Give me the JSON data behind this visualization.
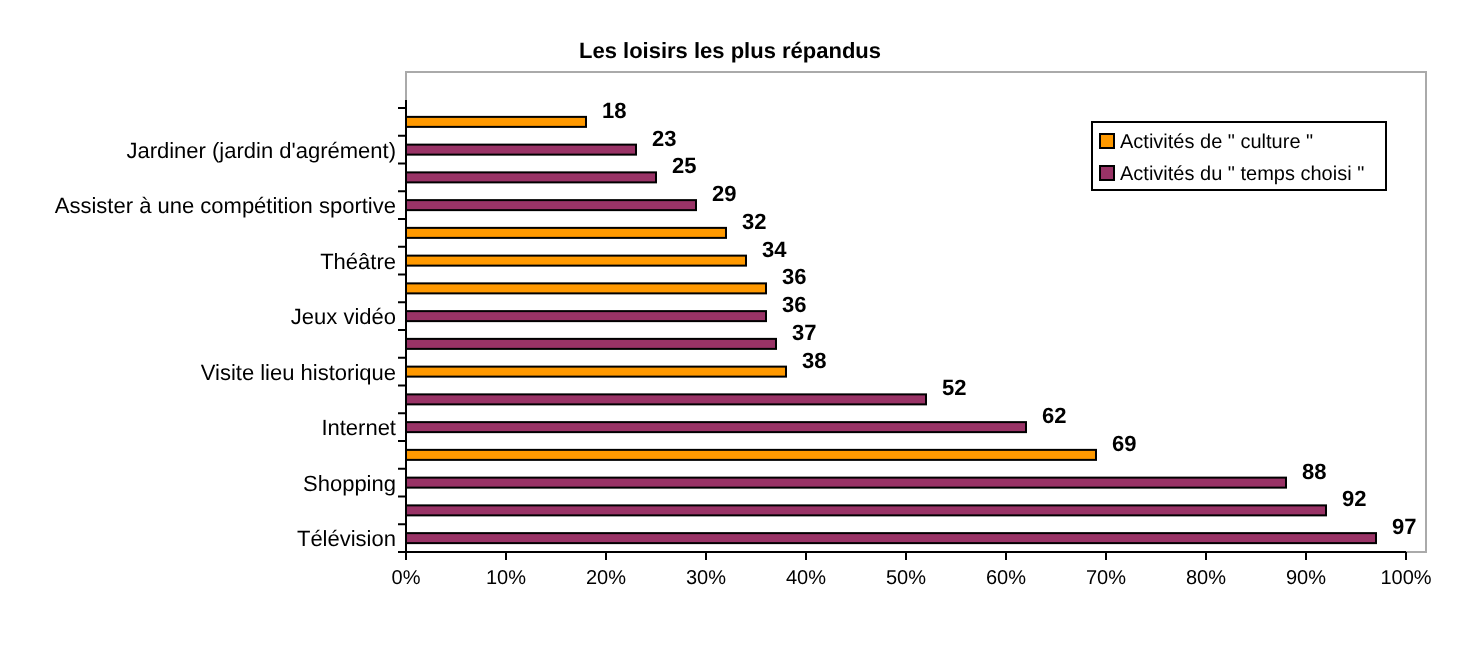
{
  "chart_data": {
    "type": "bar",
    "orientation": "horizontal",
    "title": "Les loisirs les plus répandus",
    "categories": [
      null,
      "Jardiner (jardin d'agrément)",
      null,
      "Assister à une compétition sportive",
      null,
      "Théâtre",
      null,
      "Jeux vidéo",
      null,
      "Visite lieu historique",
      null,
      "Internet",
      null,
      "Shopping",
      null,
      "Télévision"
    ],
    "series": [
      {
        "name": "Activités de \" culture \"",
        "color": "#ff9900",
        "values": [
          18,
          null,
          null,
          null,
          32,
          34,
          36,
          null,
          null,
          38,
          null,
          null,
          69,
          null,
          null,
          null
        ]
      },
      {
        "name": "Activités du \" temps choisi \"",
        "color": "#993366",
        "values": [
          null,
          23,
          25,
          29,
          null,
          null,
          null,
          36,
          37,
          null,
          52,
          62,
          null,
          88,
          92,
          97
        ]
      }
    ],
    "xlim": [
      0,
      100
    ],
    "xticks": [
      {
        "value": 0,
        "label": "0%"
      },
      {
        "value": 10,
        "label": "10%"
      },
      {
        "value": 20,
        "label": "20%"
      },
      {
        "value": 30,
        "label": "30%"
      },
      {
        "value": 40,
        "label": "40%"
      },
      {
        "value": 50,
        "label": "50%"
      },
      {
        "value": 60,
        "label": "60%"
      },
      {
        "value": 70,
        "label": "70%"
      },
      {
        "value": 80,
        "label": "80%"
      },
      {
        "value": 90,
        "label": "90%"
      },
      {
        "value": 100,
        "label": "100%"
      }
    ],
    "data_labels": true,
    "legend": "top right",
    "grid": false
  }
}
